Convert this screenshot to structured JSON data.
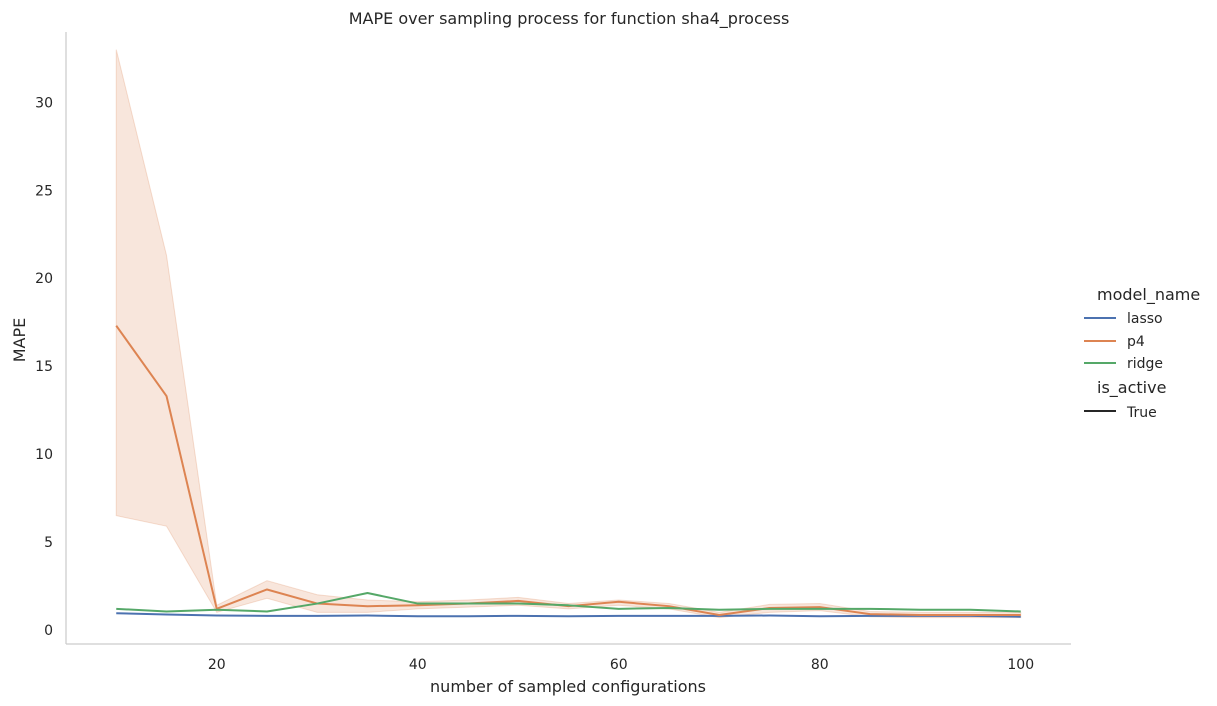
{
  "chart_data": {
    "type": "line",
    "title": "MAPE over sampling process for function sha4_process",
    "xlabel": "number of sampled configurations",
    "ylabel": "MAPE",
    "xlim": [
      5,
      105
    ],
    "ylim": [
      -0.8,
      34.0
    ],
    "xticks": [
      20,
      40,
      60,
      80,
      100
    ],
    "yticks": [
      0,
      5,
      10,
      15,
      20,
      25,
      30
    ],
    "grid": false,
    "legend_placement": "right",
    "legend_hue_title": "model_name",
    "legend_style_title": "is_active",
    "legend_style_entries": [
      "True"
    ],
    "x": [
      10,
      15,
      20,
      25,
      30,
      35,
      40,
      45,
      50,
      55,
      60,
      65,
      70,
      75,
      80,
      85,
      90,
      95,
      100
    ],
    "series": [
      {
        "name": "lasso",
        "color": "#4c72b0",
        "values": [
          0.95,
          0.88,
          0.82,
          0.8,
          0.8,
          0.82,
          0.78,
          0.78,
          0.8,
          0.78,
          0.8,
          0.8,
          0.8,
          0.82,
          0.78,
          0.8,
          0.8,
          0.8,
          0.75
        ]
      },
      {
        "name": "p4",
        "color": "#dd8452",
        "values": [
          17.3,
          13.3,
          1.2,
          2.3,
          1.5,
          1.35,
          1.4,
          1.5,
          1.65,
          1.35,
          1.6,
          1.35,
          0.85,
          1.25,
          1.3,
          0.9,
          0.85,
          0.85,
          0.85
        ],
        "ci_lower": [
          6.5,
          5.9,
          1.0,
          1.8,
          1.0,
          1.0,
          1.2,
          1.3,
          1.4,
          1.2,
          1.4,
          1.2,
          0.7,
          1.0,
          1.1,
          0.75,
          0.7,
          0.7,
          0.7
        ],
        "ci_upper": [
          33.0,
          21.3,
          1.4,
          2.8,
          2.0,
          1.7,
          1.6,
          1.7,
          1.85,
          1.5,
          1.7,
          1.5,
          1.0,
          1.45,
          1.5,
          1.05,
          1.0,
          1.0,
          1.0
        ]
      },
      {
        "name": "ridge",
        "color": "#55a868",
        "values": [
          1.2,
          1.05,
          1.15,
          1.05,
          1.5,
          2.1,
          1.5,
          1.5,
          1.5,
          1.4,
          1.2,
          1.25,
          1.15,
          1.2,
          1.2,
          1.2,
          1.15,
          1.15,
          1.05
        ]
      }
    ]
  }
}
